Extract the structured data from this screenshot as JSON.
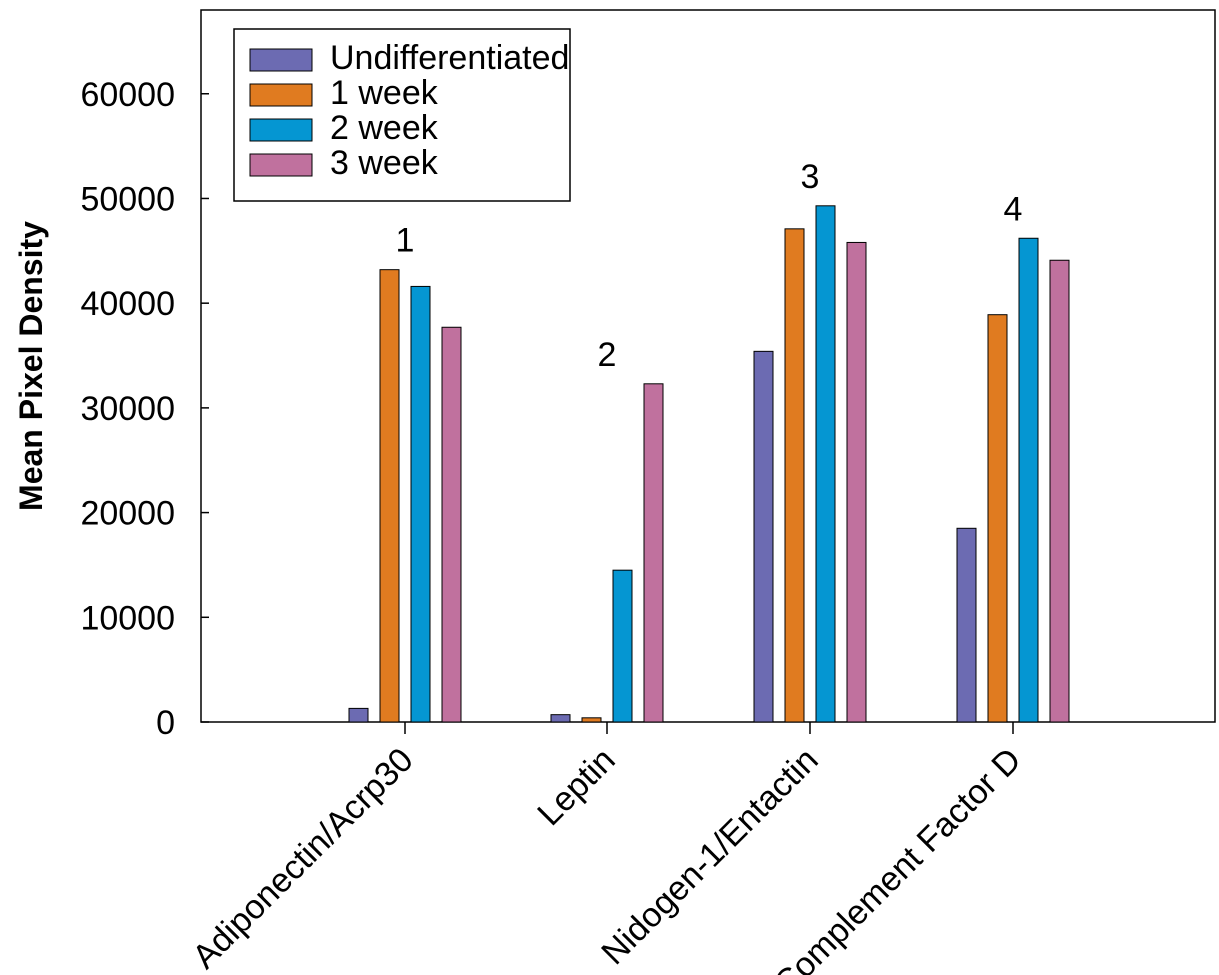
{
  "chart_data": {
    "type": "bar",
    "title": "",
    "xlabel": "",
    "ylabel": "Mean Pixel Density",
    "ylim": [
      0,
      68000
    ],
    "yticks": [
      0,
      10000,
      20000,
      30000,
      40000,
      50000,
      60000
    ],
    "grid": false,
    "legend_position": "top-left",
    "categories": [
      "Adiponectin/Acrp30",
      "Leptin",
      "Nidogen-1/Entactin",
      "Complement Factor D"
    ],
    "series": [
      {
        "name": "Undifferentiated",
        "color": "#6c6bb2",
        "values": [
          1300,
          700,
          35400,
          18500
        ]
      },
      {
        "name": "1 week",
        "color": "#e07b20",
        "values": [
          43200,
          400,
          47100,
          38900
        ]
      },
      {
        "name": "2 week",
        "color": "#0596d2",
        "values": [
          41600,
          14500,
          49300,
          46200
        ]
      },
      {
        "name": "3 week",
        "color": "#c0719e",
        "values": [
          37700,
          32300,
          45800,
          44100
        ]
      }
    ],
    "annotations": [
      "1",
      "2",
      "3",
      "4"
    ]
  }
}
